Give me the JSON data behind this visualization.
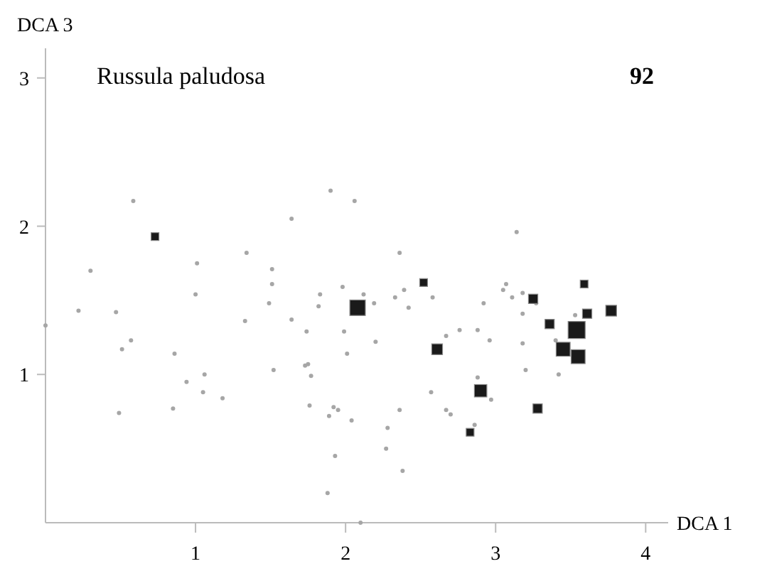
{
  "chart_data": {
    "type": "scatter",
    "title": "Russula paludosa",
    "xlabel": "DCA 1",
    "ylabel": "DCA 3",
    "annotations": [
      "92"
    ],
    "xlim": [
      0,
      4.15
    ],
    "ylim": [
      0,
      3.2
    ],
    "xticks": [
      1,
      2,
      3,
      4
    ],
    "yticks": [
      1,
      2,
      3
    ],
    "grid": false,
    "series": [
      {
        "color": "#a6a6a6",
        "marker": "circle",
        "x": [
          0.585,
          0.3,
          1.01,
          1.34,
          1.0,
          0.22,
          0.47,
          1.33,
          0.0,
          0.57,
          0.51,
          0.86,
          1.06,
          0.94,
          1.05,
          1.18,
          0.49,
          0.85,
          1.9,
          2.06,
          1.64,
          2.36,
          1.51,
          1.51,
          1.98,
          1.83,
          2.12,
          2.39,
          2.33,
          2.58,
          1.49,
          1.82,
          2.19,
          2.42,
          2.92,
          1.64,
          1.74,
          1.99,
          2.2,
          2.67,
          2.76,
          2.88,
          2.96,
          2.01,
          1.73,
          1.75,
          1.52,
          1.77,
          2.88,
          2.57,
          2.97,
          1.76,
          1.92,
          1.95,
          1.89,
          2.04,
          2.36,
          2.67,
          2.7,
          2.28,
          2.86,
          2.27,
          1.93,
          2.38,
          1.88,
          2.1,
          3.14,
          3.07,
          3.05,
          3.18,
          3.11,
          3.27,
          3.18,
          3.53,
          3.18,
          3.4,
          3.2,
          3.42
        ],
        "values": [
          2.17,
          1.7,
          1.75,
          1.82,
          1.54,
          1.43,
          1.42,
          1.36,
          1.33,
          1.23,
          1.17,
          1.14,
          1.0,
          0.95,
          0.88,
          0.84,
          0.74,
          0.77,
          2.24,
          2.17,
          2.05,
          1.82,
          1.71,
          1.61,
          1.59,
          1.54,
          1.54,
          1.57,
          1.52,
          1.52,
          1.48,
          1.46,
          1.48,
          1.45,
          1.48,
          1.37,
          1.29,
          1.29,
          1.22,
          1.26,
          1.3,
          1.3,
          1.23,
          1.14,
          1.06,
          1.07,
          1.03,
          0.99,
          0.98,
          0.88,
          0.83,
          0.79,
          0.78,
          0.76,
          0.72,
          0.69,
          0.76,
          0.76,
          0.73,
          0.64,
          0.66,
          0.5,
          0.45,
          0.35,
          0.2,
          0.0,
          1.96,
          1.61,
          1.57,
          1.55,
          1.52,
          1.48,
          1.41,
          1.4,
          1.21,
          1.23,
          1.03,
          1.0
        ]
      },
      {
        "type": "bubble",
        "color": "#1a1a1a",
        "marker": "square",
        "x": [
          0.73,
          2.52,
          2.08,
          2.61,
          2.9,
          2.83,
          3.59,
          3.25,
          3.61,
          3.77,
          3.36,
          3.54,
          3.45,
          3.55,
          3.28
        ],
        "values": [
          1.93,
          1.62,
          1.45,
          1.17,
          0.89,
          0.61,
          1.61,
          1.51,
          1.41,
          1.43,
          1.34,
          1.3,
          1.17,
          1.12,
          0.77
        ],
        "sizes": [
          0.21,
          0.21,
          0.83,
          0.4,
          0.53,
          0.21,
          0.21,
          0.3,
          0.3,
          0.4,
          0.3,
          1,
          0.67,
          0.67,
          0.3
        ]
      }
    ]
  }
}
